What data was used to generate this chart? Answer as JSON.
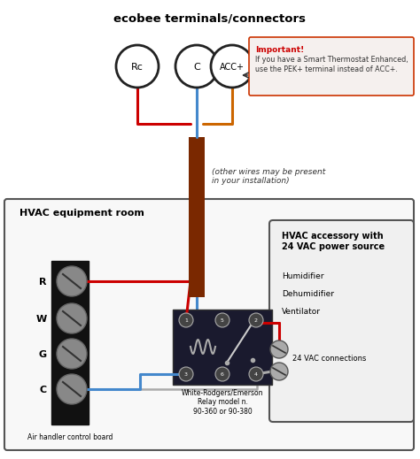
{
  "title": "ecobee terminals/connectors",
  "bg_color": "#ffffff",
  "hvac_room_label": "HVAC equipment room",
  "air_handler_label": "Air handler control board",
  "relay_label": "White-Rodgers/Emerson\nRelay model n.\n90-360 or 90-380",
  "hvac_box_title": "HVAC accessory with\n24 VAC power source",
  "hvac_box_items": [
    "Humidifier",
    "Dehumidifier",
    "Ventilator"
  ],
  "hvac_box_bottom": "24 VAC connections",
  "other_wires_text": "(other wires may be present\nin your installation)",
  "important_title": "Important!",
  "important_line1": "If you have a Smart Thermostat Enhanced,",
  "important_line2": "use the PEK+ terminal instead of ACC+.",
  "terminal_labels": [
    "Rc",
    "C",
    "ACC+"
  ],
  "terminal_wire_colors": [
    "#cc0000",
    "#4488cc",
    "#cc6600"
  ],
  "screw_labels": [
    "R",
    "W",
    "G",
    "C"
  ],
  "conductor_color": "#7a2800",
  "wire_red": "#cc0000",
  "wire_blue": "#4488cc",
  "wire_orange": "#cc6600",
  "wire_gray": "#aaaaaa"
}
